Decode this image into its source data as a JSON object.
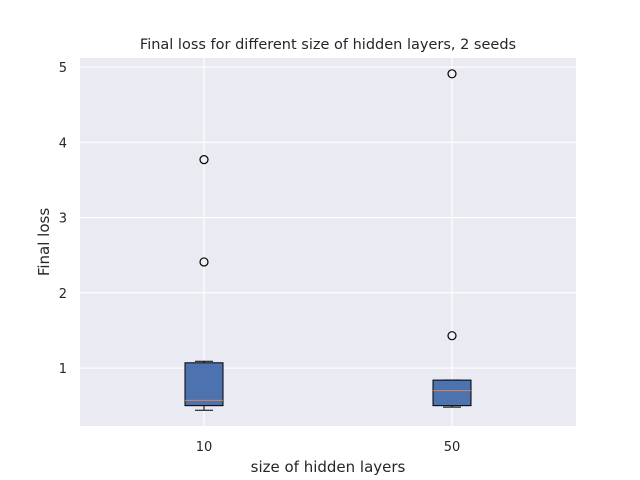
{
  "chart_data": {
    "type": "box",
    "title": "Final loss for different size of hidden layers, 2 seeds",
    "xlabel": "size of hidden layers",
    "ylabel": "Final loss",
    "categories": [
      "10",
      "50"
    ],
    "ylim": [
      0.23,
      5.12
    ],
    "yticks": [
      1,
      2,
      3,
      4,
      5
    ],
    "grid": true,
    "boxes": [
      {
        "label": "10",
        "whisker_low": 0.44,
        "q1": 0.5,
        "median": 0.57,
        "q3": 1.07,
        "whisker_high": 1.09,
        "outliers": [
          2.41,
          3.77
        ]
      },
      {
        "label": "50",
        "whisker_low": 0.48,
        "q1": 0.5,
        "median": 0.7,
        "q3": 0.84,
        "whisker_high": 0.84,
        "outliers": [
          1.43,
          4.91
        ]
      }
    ],
    "colors": {
      "box_fill": "#4c72b0",
      "median": "#dd8452",
      "background": "#eaeaf2",
      "grid": "#ffffff"
    }
  }
}
